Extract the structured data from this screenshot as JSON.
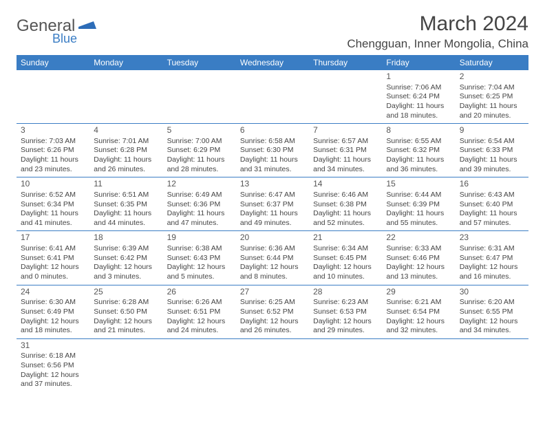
{
  "logo": {
    "text1": "General",
    "text2": "Blue"
  },
  "title": "March 2024",
  "location": "Chengguan, Inner Mongolia, China",
  "colors": {
    "header_bg": "#3a7dc4",
    "header_text": "#ffffff",
    "border": "#3a7dc4",
    "text": "#444444"
  },
  "dayHeaders": [
    "Sunday",
    "Monday",
    "Tuesday",
    "Wednesday",
    "Thursday",
    "Friday",
    "Saturday"
  ],
  "weeks": [
    [
      null,
      null,
      null,
      null,
      null,
      {
        "n": "1",
        "sr": "Sunrise: 7:06 AM",
        "ss": "Sunset: 6:24 PM",
        "dl": "Daylight: 11 hours and 18 minutes."
      },
      {
        "n": "2",
        "sr": "Sunrise: 7:04 AM",
        "ss": "Sunset: 6:25 PM",
        "dl": "Daylight: 11 hours and 20 minutes."
      }
    ],
    [
      {
        "n": "3",
        "sr": "Sunrise: 7:03 AM",
        "ss": "Sunset: 6:26 PM",
        "dl": "Daylight: 11 hours and 23 minutes."
      },
      {
        "n": "4",
        "sr": "Sunrise: 7:01 AM",
        "ss": "Sunset: 6:28 PM",
        "dl": "Daylight: 11 hours and 26 minutes."
      },
      {
        "n": "5",
        "sr": "Sunrise: 7:00 AM",
        "ss": "Sunset: 6:29 PM",
        "dl": "Daylight: 11 hours and 28 minutes."
      },
      {
        "n": "6",
        "sr": "Sunrise: 6:58 AM",
        "ss": "Sunset: 6:30 PM",
        "dl": "Daylight: 11 hours and 31 minutes."
      },
      {
        "n": "7",
        "sr": "Sunrise: 6:57 AM",
        "ss": "Sunset: 6:31 PM",
        "dl": "Daylight: 11 hours and 34 minutes."
      },
      {
        "n": "8",
        "sr": "Sunrise: 6:55 AM",
        "ss": "Sunset: 6:32 PM",
        "dl": "Daylight: 11 hours and 36 minutes."
      },
      {
        "n": "9",
        "sr": "Sunrise: 6:54 AM",
        "ss": "Sunset: 6:33 PM",
        "dl": "Daylight: 11 hours and 39 minutes."
      }
    ],
    [
      {
        "n": "10",
        "sr": "Sunrise: 6:52 AM",
        "ss": "Sunset: 6:34 PM",
        "dl": "Daylight: 11 hours and 41 minutes."
      },
      {
        "n": "11",
        "sr": "Sunrise: 6:51 AM",
        "ss": "Sunset: 6:35 PM",
        "dl": "Daylight: 11 hours and 44 minutes."
      },
      {
        "n": "12",
        "sr": "Sunrise: 6:49 AM",
        "ss": "Sunset: 6:36 PM",
        "dl": "Daylight: 11 hours and 47 minutes."
      },
      {
        "n": "13",
        "sr": "Sunrise: 6:47 AM",
        "ss": "Sunset: 6:37 PM",
        "dl": "Daylight: 11 hours and 49 minutes."
      },
      {
        "n": "14",
        "sr": "Sunrise: 6:46 AM",
        "ss": "Sunset: 6:38 PM",
        "dl": "Daylight: 11 hours and 52 minutes."
      },
      {
        "n": "15",
        "sr": "Sunrise: 6:44 AM",
        "ss": "Sunset: 6:39 PM",
        "dl": "Daylight: 11 hours and 55 minutes."
      },
      {
        "n": "16",
        "sr": "Sunrise: 6:43 AM",
        "ss": "Sunset: 6:40 PM",
        "dl": "Daylight: 11 hours and 57 minutes."
      }
    ],
    [
      {
        "n": "17",
        "sr": "Sunrise: 6:41 AM",
        "ss": "Sunset: 6:41 PM",
        "dl": "Daylight: 12 hours and 0 minutes."
      },
      {
        "n": "18",
        "sr": "Sunrise: 6:39 AM",
        "ss": "Sunset: 6:42 PM",
        "dl": "Daylight: 12 hours and 3 minutes."
      },
      {
        "n": "19",
        "sr": "Sunrise: 6:38 AM",
        "ss": "Sunset: 6:43 PM",
        "dl": "Daylight: 12 hours and 5 minutes."
      },
      {
        "n": "20",
        "sr": "Sunrise: 6:36 AM",
        "ss": "Sunset: 6:44 PM",
        "dl": "Daylight: 12 hours and 8 minutes."
      },
      {
        "n": "21",
        "sr": "Sunrise: 6:34 AM",
        "ss": "Sunset: 6:45 PM",
        "dl": "Daylight: 12 hours and 10 minutes."
      },
      {
        "n": "22",
        "sr": "Sunrise: 6:33 AM",
        "ss": "Sunset: 6:46 PM",
        "dl": "Daylight: 12 hours and 13 minutes."
      },
      {
        "n": "23",
        "sr": "Sunrise: 6:31 AM",
        "ss": "Sunset: 6:47 PM",
        "dl": "Daylight: 12 hours and 16 minutes."
      }
    ],
    [
      {
        "n": "24",
        "sr": "Sunrise: 6:30 AM",
        "ss": "Sunset: 6:49 PM",
        "dl": "Daylight: 12 hours and 18 minutes."
      },
      {
        "n": "25",
        "sr": "Sunrise: 6:28 AM",
        "ss": "Sunset: 6:50 PM",
        "dl": "Daylight: 12 hours and 21 minutes."
      },
      {
        "n": "26",
        "sr": "Sunrise: 6:26 AM",
        "ss": "Sunset: 6:51 PM",
        "dl": "Daylight: 12 hours and 24 minutes."
      },
      {
        "n": "27",
        "sr": "Sunrise: 6:25 AM",
        "ss": "Sunset: 6:52 PM",
        "dl": "Daylight: 12 hours and 26 minutes."
      },
      {
        "n": "28",
        "sr": "Sunrise: 6:23 AM",
        "ss": "Sunset: 6:53 PM",
        "dl": "Daylight: 12 hours and 29 minutes."
      },
      {
        "n": "29",
        "sr": "Sunrise: 6:21 AM",
        "ss": "Sunset: 6:54 PM",
        "dl": "Daylight: 12 hours and 32 minutes."
      },
      {
        "n": "30",
        "sr": "Sunrise: 6:20 AM",
        "ss": "Sunset: 6:55 PM",
        "dl": "Daylight: 12 hours and 34 minutes."
      }
    ],
    [
      {
        "n": "31",
        "sr": "Sunrise: 6:18 AM",
        "ss": "Sunset: 6:56 PM",
        "dl": "Daylight: 12 hours and 37 minutes."
      },
      null,
      null,
      null,
      null,
      null,
      null
    ]
  ]
}
